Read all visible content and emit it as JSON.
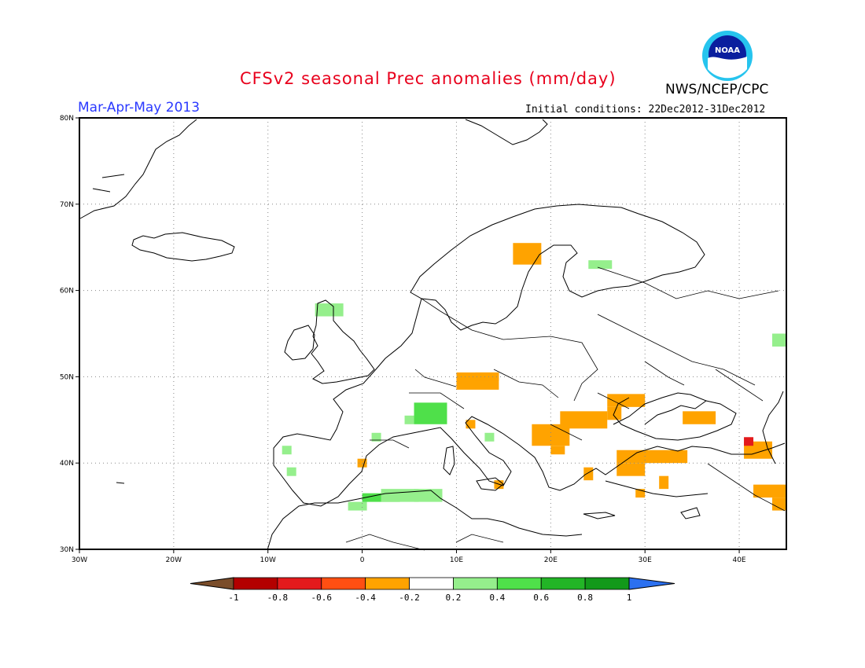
{
  "header": {
    "title": "CFSv2 seasonal Prec anomalies (mm/day)",
    "season": "Mar-Apr-May 2013",
    "initial_conditions": "Initial conditions: 22Dec2012-31Dec2012",
    "agency": "NWS/NCEP/CPC",
    "logo_text": "NOAA"
  },
  "map": {
    "lon_range": [
      -30,
      45
    ],
    "lat_range": [
      30,
      80
    ],
    "lon_ticks": [
      {
        "value": -30,
        "label": "30W"
      },
      {
        "value": -20,
        "label": "20W"
      },
      {
        "value": -10,
        "label": "10W"
      },
      {
        "value": 0,
        "label": "0"
      },
      {
        "value": 10,
        "label": "10E"
      },
      {
        "value": 20,
        "label": "20E"
      },
      {
        "value": 30,
        "label": "30E"
      },
      {
        "value": 40,
        "label": "40E"
      }
    ],
    "lat_ticks": [
      {
        "value": 30,
        "label": "30N"
      },
      {
        "value": 40,
        "label": "40N"
      },
      {
        "value": 50,
        "label": "50N"
      },
      {
        "value": 60,
        "label": "60N"
      },
      {
        "value": 70,
        "label": "70N"
      },
      {
        "value": 80,
        "label": "80N"
      }
    ],
    "grid": true,
    "anomaly_cells": [
      {
        "lon": 16.0,
        "lat": 63.0,
        "w": 3.0,
        "h": 2.5,
        "bin": "-0.4"
      },
      {
        "lon": 24.0,
        "lat": 62.5,
        "w": 2.5,
        "h": 1.0,
        "bin": "0.2"
      },
      {
        "lon": -5.0,
        "lat": 57.0,
        "w": 3.0,
        "h": 1.5,
        "bin": "0.2"
      },
      {
        "lon": 10.0,
        "lat": 48.5,
        "w": 4.5,
        "h": 2.0,
        "bin": "-0.4"
      },
      {
        "lon": 12.0,
        "lat": 49.5,
        "w": 2.5,
        "h": 1.0,
        "bin": "-0.4"
      },
      {
        "lon": 5.5,
        "lat": 44.5,
        "w": 3.5,
        "h": 2.5,
        "bin": "0.4"
      },
      {
        "lon": 4.5,
        "lat": 44.5,
        "w": 1.0,
        "h": 1.0,
        "bin": "0.2"
      },
      {
        "lon": 1.0,
        "lat": 42.5,
        "w": 1.0,
        "h": 1.0,
        "bin": "0.2"
      },
      {
        "lon": 11.0,
        "lat": 44.0,
        "w": 1.0,
        "h": 1.0,
        "bin": "-0.4"
      },
      {
        "lon": 13.0,
        "lat": 42.5,
        "w": 1.0,
        "h": 1.0,
        "bin": "0.2"
      },
      {
        "lon": 18.0,
        "lat": 42.0,
        "w": 4.0,
        "h": 2.5,
        "bin": "-0.4"
      },
      {
        "lon": 21.0,
        "lat": 44.0,
        "w": 5.0,
        "h": 2.0,
        "bin": "-0.4"
      },
      {
        "lon": 26.0,
        "lat": 46.5,
        "w": 4.0,
        "h": 1.5,
        "bin": "-0.4"
      },
      {
        "lon": 26.0,
        "lat": 45.0,
        "w": 1.5,
        "h": 1.5,
        "bin": "-0.4"
      },
      {
        "lon": 20.0,
        "lat": 41.0,
        "w": 1.5,
        "h": 1.0,
        "bin": "-0.4"
      },
      {
        "lon": 27.0,
        "lat": 40.0,
        "w": 7.5,
        "h": 1.5,
        "bin": "-0.4"
      },
      {
        "lon": 27.0,
        "lat": 38.5,
        "w": 3.0,
        "h": 1.5,
        "bin": "-0.4"
      },
      {
        "lon": 23.5,
        "lat": 38.0,
        "w": 1.0,
        "h": 1.5,
        "bin": "-0.4"
      },
      {
        "lon": 34.0,
        "lat": 44.5,
        "w": 3.5,
        "h": 1.5,
        "bin": "-0.4"
      },
      {
        "lon": 31.5,
        "lat": 37.0,
        "w": 1.0,
        "h": 1.5,
        "bin": "-0.4"
      },
      {
        "lon": 29.0,
        "lat": 36.0,
        "w": 1.0,
        "h": 1.0,
        "bin": "-0.4"
      },
      {
        "lon": 40.5,
        "lat": 40.5,
        "w": 3.0,
        "h": 2.0,
        "bin": "-0.4"
      },
      {
        "lon": 40.5,
        "lat": 42.0,
        "w": 1.0,
        "h": 1.0,
        "bin": "-0.8"
      },
      {
        "lon": 41.5,
        "lat": 36.0,
        "w": 3.5,
        "h": 1.5,
        "bin": "-0.4"
      },
      {
        "lon": 43.5,
        "lat": 34.5,
        "w": 1.5,
        "h": 1.5,
        "bin": "-0.4"
      },
      {
        "lon": -0.5,
        "lat": 39.5,
        "w": 1.0,
        "h": 1.0,
        "bin": "-0.4"
      },
      {
        "lon": 14.0,
        "lat": 37.0,
        "w": 1.0,
        "h": 1.0,
        "bin": "-0.4"
      },
      {
        "lon": -8.5,
        "lat": 41.0,
        "w": 1.0,
        "h": 1.0,
        "bin": "0.2"
      },
      {
        "lon": -8.0,
        "lat": 38.5,
        "w": 1.0,
        "h": 1.0,
        "bin": "0.2"
      },
      {
        "lon": -1.5,
        "lat": 34.5,
        "w": 2.0,
        "h": 1.0,
        "bin": "0.2"
      },
      {
        "lon": 0.0,
        "lat": 35.5,
        "w": 4.0,
        "h": 1.0,
        "bin": "0.4"
      },
      {
        "lon": 2.0,
        "lat": 35.5,
        "w": 4.0,
        "h": 1.5,
        "bin": "0.2"
      },
      {
        "lon": 5.5,
        "lat": 35.5,
        "w": 3.0,
        "h": 1.5,
        "bin": "0.2"
      },
      {
        "lon": 43.5,
        "lat": 53.5,
        "w": 1.5,
        "h": 1.5,
        "bin": "0.2"
      }
    ]
  },
  "colorbar": {
    "labels": [
      "-1",
      "-0.8",
      "-0.6",
      "-0.4",
      "-0.2",
      "0.2",
      "0.4",
      "0.6",
      "0.8",
      "1"
    ],
    "bins": [
      {
        "key": "<-1",
        "color": "#7a4d2a"
      },
      {
        "key": "-0.8",
        "color": "#b30000"
      },
      {
        "key": "-0.6",
        "color": "#e31a1c"
      },
      {
        "key": "-0.4",
        "color": "#ff4f12"
      },
      {
        "key": "-0.4b",
        "color": "#ffa300"
      },
      {
        "key": "neutral",
        "color": "#ffffff"
      },
      {
        "key": "0.2",
        "color": "#95ef8c"
      },
      {
        "key": "0.4",
        "color": "#4fe04a"
      },
      {
        "key": "0.6",
        "color": "#22b526"
      },
      {
        "key": "0.8",
        "color": "#12991a"
      },
      {
        "key": ">1",
        "color": "#2b70f0"
      }
    ],
    "bin_colors": {
      "-0.8": "#e31a1c",
      "-0.4": "#ffa300",
      "0.2": "#95ef8c",
      "0.4": "#4fe04a"
    }
  }
}
